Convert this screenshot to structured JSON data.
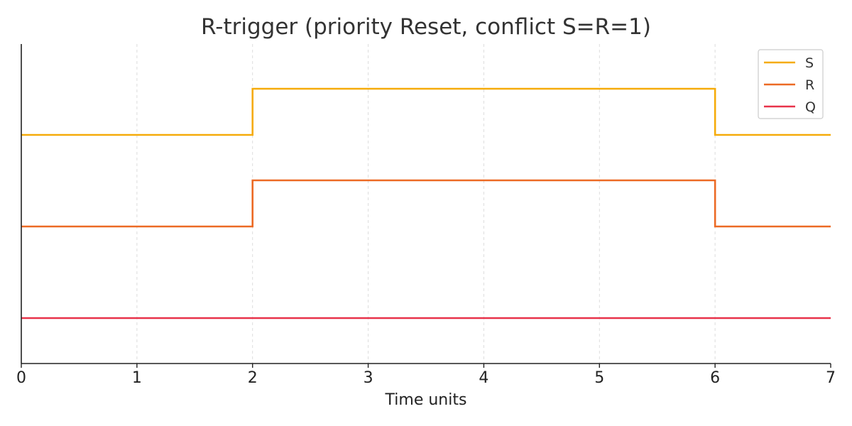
{
  "chart_data": {
    "type": "line",
    "title": "R-trigger (priority Reset, conflict S=R=1)",
    "xlabel": "Time units",
    "ylabel": "",
    "xlim": [
      0,
      7
    ],
    "x_ticks": [
      0,
      1,
      2,
      3,
      4,
      5,
      6,
      7
    ],
    "x_tick_labels": [
      "0",
      "1",
      "2",
      "3",
      "4",
      "5",
      "6",
      "7"
    ],
    "grid": "vertical dashed",
    "legend_position": "top-right",
    "step": "post",
    "series": [
      {
        "name": "S",
        "color": "#F5AB0A",
        "x": [
          0,
          2,
          6,
          7
        ],
        "y": [
          0,
          1,
          0,
          0
        ]
      },
      {
        "name": "R",
        "color": "#EC6A24",
        "x": [
          0,
          2,
          6,
          7
        ],
        "y": [
          0,
          1,
          0,
          0
        ]
      },
      {
        "name": "Q",
        "color": "#E8334A",
        "x": [
          0,
          7
        ],
        "y": [
          0,
          0
        ]
      }
    ]
  }
}
